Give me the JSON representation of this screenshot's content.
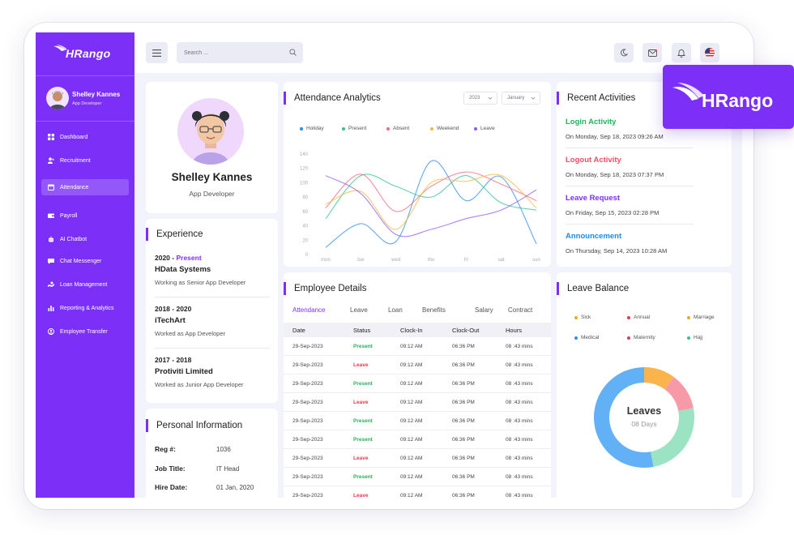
{
  "app": {
    "brand": "HRango",
    "badge_brand": "HRango"
  },
  "sidebar": {
    "user": {
      "name": "Shelley Kannes",
      "role": "App Developer"
    },
    "items": [
      {
        "label": "Dashboard",
        "icon": "grid-icon"
      },
      {
        "label": "Recruitment",
        "icon": "users-icon"
      },
      {
        "label": "Attendance",
        "icon": "calendar-icon",
        "active": true
      },
      {
        "label": "Payroll",
        "icon": "wallet-icon"
      },
      {
        "label": "AI Chatbot",
        "icon": "bot-icon"
      },
      {
        "label": "Chat Messenger",
        "icon": "chat-icon"
      },
      {
        "label": "Loan Management",
        "icon": "loan-icon"
      },
      {
        "label": "Reporting & Analytics",
        "icon": "bar-chart-icon"
      },
      {
        "label": "Employee Transfer",
        "icon": "transfer-icon"
      }
    ]
  },
  "header": {
    "search": {
      "placeholder": "Search ...",
      "value": ""
    }
  },
  "profile": {
    "name": "Shelley Kannes",
    "role": "App Developer"
  },
  "experience": {
    "title": "Experience",
    "items": [
      {
        "start": "2020 - ",
        "end": "Present",
        "company": "HData Systems",
        "desc": "Working as Senior App Developer"
      },
      {
        "start": "2018 - 2020",
        "end": "",
        "company": "iTechArt",
        "desc": "Worked as App Developer"
      },
      {
        "start": "2017 - 2018",
        "end": "",
        "company": "Protiviti Limited",
        "desc": "Worked as Junior App Developer"
      }
    ]
  },
  "personal": {
    "title": "Personal Information",
    "rows": [
      {
        "label": "Reg #:",
        "value": "1036"
      },
      {
        "label": "Job Title:",
        "value": "IT Head"
      },
      {
        "label": "Hire Date:",
        "value": "01 Jan, 2020"
      }
    ]
  },
  "attendance": {
    "title": "Attendance Analytics",
    "year": "2023",
    "month": "January"
  },
  "chart_data": {
    "type": "line",
    "title": "Attendance Analytics",
    "categories": [
      "mon",
      "tue",
      "wed",
      "thu",
      "fri",
      "sat",
      "sun"
    ],
    "yticks": [
      "0",
      "20",
      "40",
      "60",
      "80",
      "100",
      "120",
      "140"
    ],
    "ylim": [
      0,
      140
    ],
    "legend_position": "top",
    "grid": false,
    "series": [
      {
        "name": "Holiday",
        "color": "#2f8ce8",
        "values": [
          10,
          43,
          18,
          130,
          75,
          108,
          15
        ]
      },
      {
        "name": "Present",
        "color": "#31c48d",
        "values": [
          50,
          110,
          95,
          80,
          110,
          72,
          62
        ]
      },
      {
        "name": "Absent",
        "color": "#f06a7b",
        "values": [
          65,
          112,
          60,
          95,
          115,
          98,
          75
        ]
      },
      {
        "name": "Weekend",
        "color": "#f5b942",
        "values": [
          70,
          88,
          35,
          100,
          102,
          110,
          65
        ]
      },
      {
        "name": "Leave",
        "color": "#8b5cf6",
        "values": [
          110,
          85,
          28,
          35,
          50,
          62,
          90
        ]
      }
    ]
  },
  "employee": {
    "title": "Employee Details",
    "tabs": [
      "Attendance",
      "Leave",
      "Loan",
      "Benefits",
      "Salary",
      "Contract"
    ],
    "columns": [
      "Date",
      "Status",
      "Clock-In",
      "Clock-Out",
      "Hours"
    ],
    "rows": [
      {
        "date": "29-Sep-2023",
        "status": "Present",
        "in": "09:12 AM",
        "out": "06:36 PM",
        "hours": "08 :43 mins"
      },
      {
        "date": "29-Sep-2023",
        "status": "Leave",
        "in": "09:12 AM",
        "out": "06:36 PM",
        "hours": "08 :43 mins"
      },
      {
        "date": "29-Sep-2023",
        "status": "Present",
        "in": "09:12 AM",
        "out": "06:36 PM",
        "hours": "08 :43 mins"
      },
      {
        "date": "29-Sep-2023",
        "status": "Leave",
        "in": "09:12 AM",
        "out": "06:36 PM",
        "hours": "08 :43 mins"
      },
      {
        "date": "29-Sep-2023",
        "status": "Present",
        "in": "09:12 AM",
        "out": "06:36 PM",
        "hours": "08 :43 mins"
      },
      {
        "date": "29-Sep-2023",
        "status": "Present",
        "in": "09:12 AM",
        "out": "06:36 PM",
        "hours": "08 :43 mins"
      },
      {
        "date": "29-Sep-2023",
        "status": "Leave",
        "in": "09:12 AM",
        "out": "06:36 PM",
        "hours": "08 :43 mins"
      },
      {
        "date": "29-Sep-2023",
        "status": "Present",
        "in": "09:12 AM",
        "out": "06:36 PM",
        "hours": "08 :43 mins"
      },
      {
        "date": "29-Sep-2023",
        "status": "Leave",
        "in": "09:12 AM",
        "out": "06:36 PM",
        "hours": "08 :43 mins"
      }
    ],
    "colors": {
      "present": "#22b35b",
      "leave": "#e8384f"
    }
  },
  "activities": {
    "title": "Recent Activities",
    "items": [
      {
        "title": "Login Activity",
        "time": "On Monday, Sep 18, 2023  09:26 AM",
        "color": "#22b35b"
      },
      {
        "title": "Logout Activity",
        "time": "On Monday, Sep 18, 2023  07:37 PM",
        "color": "#ee4d62"
      },
      {
        "title": "Leave Request",
        "time": "On Friday, Sep 15, 2023  02:28 PM",
        "color": "#7b2ff7"
      },
      {
        "title": "Announcement",
        "time": "On Thursday, Sep 14, 2023  10:28 AM",
        "color": "#1f8ae0"
      }
    ]
  },
  "leave_balance": {
    "title": "Leave Balance",
    "legend": [
      {
        "name": "Sick",
        "color": "#f5a623"
      },
      {
        "name": "Annual",
        "color": "#e8384f"
      },
      {
        "name": "Marriage",
        "color": "#f5a623"
      },
      {
        "name": "Medical",
        "color": "#2f8ce8"
      },
      {
        "name": "Maternity",
        "color": "#e8384f"
      },
      {
        "name": "Hajj",
        "color": "#31c48d"
      }
    ],
    "center_title": "Leaves",
    "center_sub": "08 Days",
    "donut": [
      {
        "name": "Sick",
        "value": 10,
        "color": "#fbb34c"
      },
      {
        "name": "Annual",
        "value": 12,
        "color": "#f79aa8"
      },
      {
        "name": "Hajj",
        "value": 25,
        "color": "#9ce3c3"
      },
      {
        "name": "Medical",
        "value": 53,
        "color": "#62b0f5"
      }
    ]
  },
  "colors": {
    "brand": "#7b2ff7",
    "background": "#f3f4fb"
  }
}
